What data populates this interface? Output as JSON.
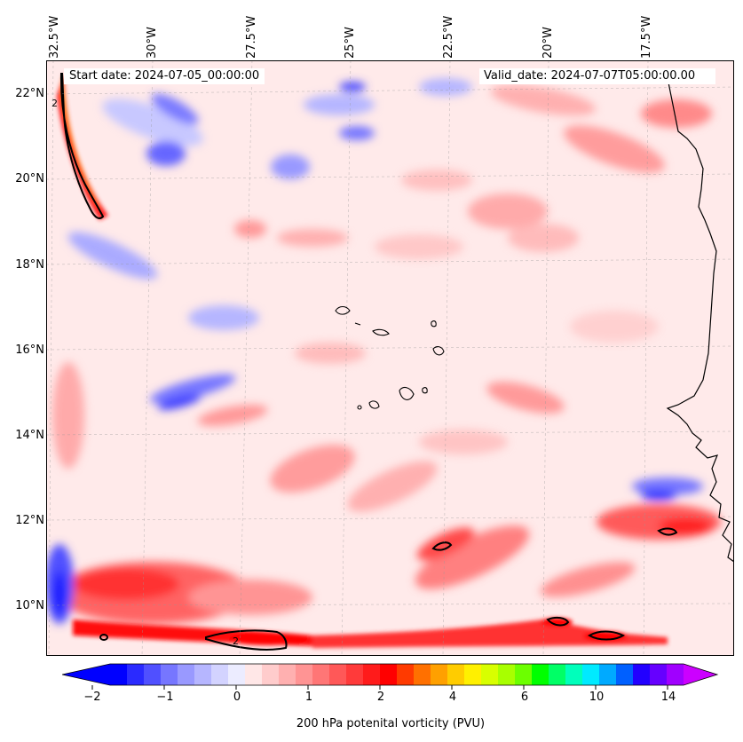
{
  "map": {
    "start_date": "Start date: 2024-07-05_00:00:00",
    "valid_date": "Valid_date: 2024-07-07T05:00:00.00",
    "field": "200 hPa potential vorticity",
    "contour_label": "2",
    "longitude_labels": [
      "32.5°W",
      "30°W",
      "27.5°W",
      "25°W",
      "22.5°W",
      "20°W",
      "17.5°W"
    ],
    "latitude_labels": [
      "22°N",
      "20°N",
      "18°N",
      "16°N",
      "14°N",
      "12°N",
      "10°N"
    ],
    "land_features": [
      "west-african-coastline",
      "cape-verde-islands"
    ]
  },
  "colorbar": {
    "label": "200 hPa potenital vorticity (PVU)",
    "tick_labels": [
      "−2",
      "−1",
      "0",
      "1",
      "2",
      "4",
      "6",
      "10",
      "14"
    ],
    "colors": [
      "#0000ff",
      "#2a2aff",
      "#5050ff",
      "#7676ff",
      "#9999ff",
      "#b6b6ff",
      "#d3d3ff",
      "#ececff",
      "#ffe7e7",
      "#ffcccc",
      "#ffb0b0",
      "#ff9494",
      "#ff7676",
      "#ff5858",
      "#ff3a3a",
      "#ff1b1b",
      "#ff0000",
      "#ff3a00",
      "#ff7000",
      "#ffa000",
      "#ffcc00",
      "#fff000",
      "#d8ff00",
      "#a8ff00",
      "#6cff00",
      "#00ff00",
      "#00ff66",
      "#00ffbb",
      "#00eaff",
      "#00aaff",
      "#0060ff",
      "#2200ff",
      "#6600ff",
      "#a000ff"
    ],
    "extend_min_color": "#0000ff",
    "extend_max_color": "#cc00ff"
  }
}
